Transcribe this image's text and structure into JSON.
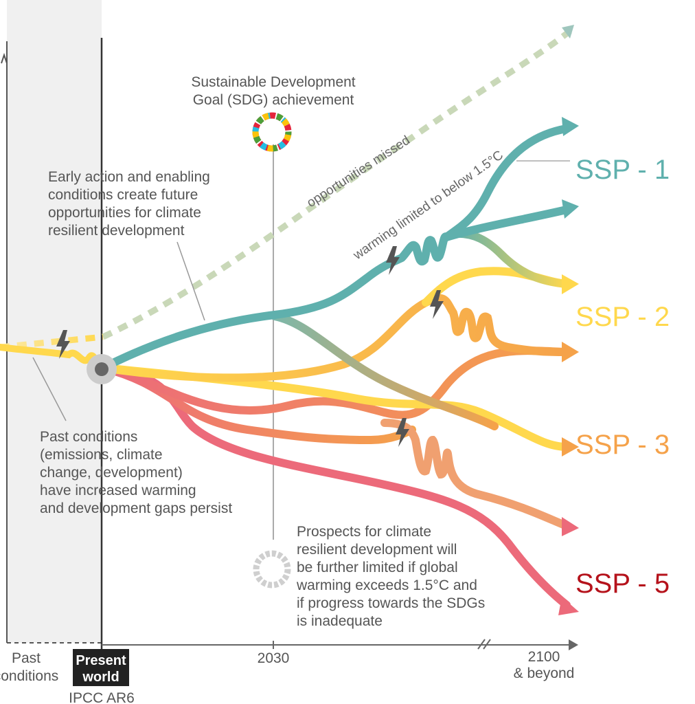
{
  "colors": {
    "ssp1": "#5fb0ad",
    "ssp2": "#ffd84d",
    "ssp3": "#f5a24a",
    "ssp5": "#b5121b",
    "orange": "#f0a070",
    "red": "#ec6a7a",
    "missed_path": "#c9d8b8",
    "past_band": "#f0f0f0"
  },
  "annotations": {
    "sdg_line1": "Sustainable Development",
    "sdg_line2": "Goal (SDG) achievement",
    "early_action": [
      "Early action and enabling",
      "conditions create future",
      "opportunities for climate",
      "resilient development"
    ],
    "past_conditions": [
      "Past conditions",
      "(emissions, climate",
      "change, development)",
      "have increased warming",
      "and development gaps persist"
    ],
    "prospects": [
      "Prospects for climate",
      "resilient development will",
      "be further limited if global",
      "warming exceeds 1.5°C and",
      "if progress towards the SDGs",
      "is inadequate"
    ],
    "opportunities_missed": "opportunities missed",
    "warming_limited": "warming limited to below 1.5°C"
  },
  "axis": {
    "past": [
      "Past",
      "conditions"
    ],
    "present": [
      "Present",
      "world"
    ],
    "ipcc": "IPCC AR6",
    "y2030": "2030",
    "y2100": [
      "2100",
      "& beyond"
    ]
  },
  "ssp_labels": {
    "ssp1": "SSP - 1",
    "ssp2": "SSP - 2",
    "ssp3": "SSP - 3",
    "ssp5": "SSP - 5"
  }
}
